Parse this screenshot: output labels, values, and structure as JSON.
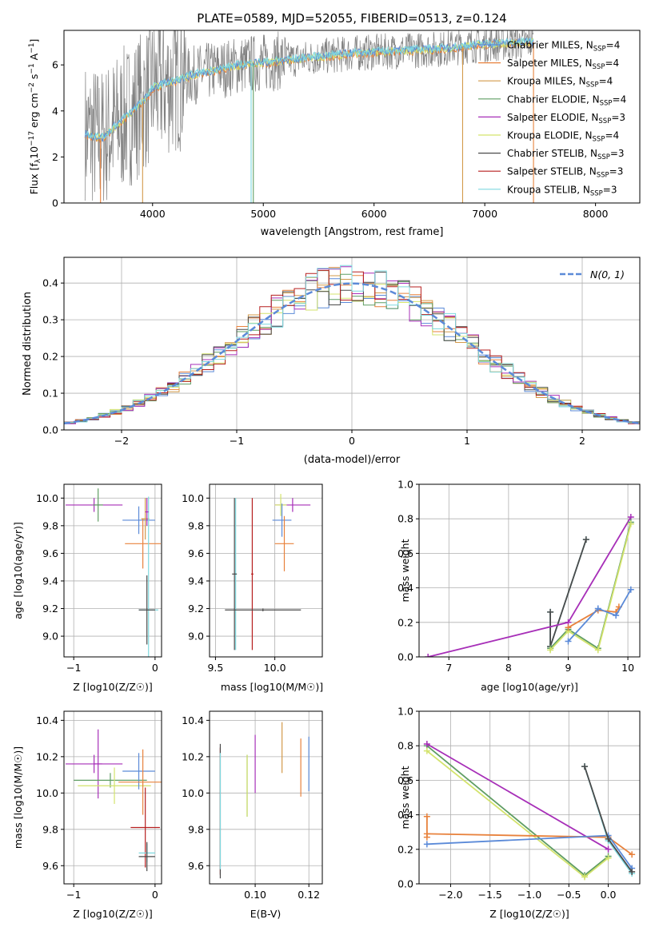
{
  "figure": {
    "title": "PLATE=0589, MJD=52055, FIBERID=0513, z=0.124"
  },
  "colors": {
    "chabrier_miles": "#5b8ad8",
    "salpeter_miles": "#e8823d",
    "kroupa_miles": "#d39a4a",
    "chabrier_elodie": "#5f9d63",
    "salpeter_elodie": "#a72fb8",
    "kroupa_elodie": "#d3e36c",
    "chabrier_stelib": "#4a4a4a",
    "salpeter_stelib": "#b61f1f",
    "kroupa_stelib": "#7fd9df",
    "gaussian": "#5b8ad8",
    "grid": "#b0b0b0"
  },
  "chart_data": [
    {
      "id": "spectrum",
      "type": "line",
      "xlabel": "wavelength [Angstrom, rest frame]",
      "ylabel_parts": [
        "Flux [f",
        "λ",
        "10",
        "−17",
        " erg cm",
        "−2",
        " s",
        "−1",
        " A",
        "−1",
        "]"
      ],
      "xlim": [
        3200,
        8400
      ],
      "ylim": [
        0,
        7.5
      ],
      "xticks": [
        4000,
        5000,
        6000,
        7000,
        8000
      ],
      "yticks": [
        0,
        2,
        4,
        6
      ],
      "grid": false,
      "legend_position": "top-right",
      "legend": [
        {
          "label": "Chabrier MILES, N",
          "sub": "SSP",
          "suffix": "=4",
          "color": "chabrier_miles"
        },
        {
          "label": "Salpeter MILES, N",
          "sub": "SSP",
          "suffix": "=4",
          "color": "salpeter_miles"
        },
        {
          "label": "Kroupa MILES, N",
          "sub": "SSP",
          "suffix": "=4",
          "color": "kroupa_miles"
        },
        {
          "label": "Chabrier ELODIE, N",
          "sub": "SSP",
          "suffix": "=4",
          "color": "chabrier_elodie"
        },
        {
          "label": "Salpeter ELODIE, N",
          "sub": "SSP",
          "suffix": "=3",
          "color": "salpeter_elodie"
        },
        {
          "label": "Kroupa ELODIE, N",
          "sub": "SSP",
          "suffix": "=4",
          "color": "kroupa_elodie"
        },
        {
          "label": "Chabrier STELIB, N",
          "sub": "SSP",
          "suffix": "=3",
          "color": "chabrier_stelib"
        },
        {
          "label": "Salpeter STELIB, N",
          "sub": "SSP",
          "suffix": "=3",
          "color": "salpeter_stelib"
        },
        {
          "label": "Kroupa STELIB, N",
          "sub": "SSP",
          "suffix": "=3",
          "color": "kroupa_stelib"
        }
      ],
      "continuum": [
        [
          3400,
          3.0
        ],
        [
          3550,
          2.8
        ],
        [
          3650,
          3.3
        ],
        [
          3800,
          3.9
        ],
        [
          3950,
          4.6
        ],
        [
          4000,
          5.0
        ],
        [
          4200,
          5.3
        ],
        [
          4400,
          5.6
        ],
        [
          4600,
          5.8
        ],
        [
          4800,
          6.0
        ],
        [
          5000,
          6.1
        ],
        [
          5200,
          6.2
        ],
        [
          5400,
          6.3
        ],
        [
          5600,
          6.4
        ],
        [
          5800,
          6.5
        ],
        [
          6000,
          6.55
        ],
        [
          6200,
          6.6
        ],
        [
          6400,
          6.65
        ],
        [
          6600,
          6.7
        ],
        [
          6800,
          6.8
        ],
        [
          7000,
          6.9
        ],
        [
          7200,
          6.95
        ],
        [
          7400,
          7.0
        ]
      ]
    },
    {
      "id": "residuals",
      "type": "histogram",
      "xlabel": "(data-model)/error",
      "ylabel": "Normed distribution",
      "xlim": [
        -2.5,
        2.5
      ],
      "ylim": [
        0,
        0.47
      ],
      "xticks": [
        -2,
        -1,
        0,
        1,
        2
      ],
      "xtick_labels": [
        "−2",
        "−1",
        "0",
        "1",
        "2"
      ],
      "yticks": [
        0.0,
        0.1,
        0.2,
        0.3,
        0.4
      ],
      "grid": true,
      "bin_width": 0.1,
      "legend_position": "top-right",
      "legend": [
        {
          "label": "N(0, 1)",
          "color": "gaussian",
          "style": "dashed"
        }
      ]
    },
    {
      "id": "age_vs_Z",
      "type": "errorbar",
      "xlabel": "Z [log10(Z/Z☉)]",
      "ylabel": "age [log10(age/yr)]",
      "xlim": [
        -1.12,
        0.08
      ],
      "ylim": [
        8.85,
        10.1
      ],
      "xticks": [
        -1,
        0
      ],
      "xtick_labels": [
        "−1",
        "0"
      ],
      "yticks": [
        9.0,
        9.2,
        9.4,
        9.6,
        9.8,
        10.0
      ],
      "grid": true,
      "points": [
        {
          "x": -0.75,
          "xerr": 0.35,
          "y": 9.95,
          "yerr": 0.05,
          "color": "salpeter_elodie"
        },
        {
          "x": -0.7,
          "xerr": 0.06,
          "y": 9.95,
          "yerr": 0.12,
          "color": "chabrier_elodie"
        },
        {
          "x": -0.2,
          "xerr": 0.2,
          "y": 9.84,
          "yerr": 0.1,
          "color": "chabrier_miles"
        },
        {
          "x": -0.15,
          "xerr": 0.22,
          "y": 9.67,
          "yerr": 0.18,
          "color": "salpeter_miles"
        },
        {
          "x": -0.12,
          "xerr": 0.05,
          "y": 9.85,
          "yerr": 0.15,
          "color": "kroupa_miles"
        },
        {
          "x": -0.08,
          "xerr": 0.12,
          "y": 9.19,
          "yerr": 0.82,
          "color": "kroupa_stelib"
        },
        {
          "x": -0.1,
          "xerr": 0.1,
          "y": 9.19,
          "yerr": 0.25,
          "color": "chabrier_stelib"
        },
        {
          "x": -0.1,
          "xerr": 0.02,
          "y": 9.9,
          "yerr": 0.1,
          "color": "salpeter_elodie"
        }
      ]
    },
    {
      "id": "age_vs_mass",
      "type": "errorbar",
      "xlabel": "mass [log10(M/M☉)]",
      "ylabel": "",
      "xlim": [
        9.45,
        10.4
      ],
      "ylim": [
        8.85,
        10.1
      ],
      "xticks": [
        9.5,
        10.0
      ],
      "xtick_labels": [
        "9.5",
        "10.0"
      ],
      "yticks": [
        9.0,
        9.2,
        9.4,
        9.6,
        9.8,
        10.0
      ],
      "grid": true,
      "points": [
        {
          "x": 10.15,
          "xerr": 0.15,
          "y": 9.95,
          "yerr": 0.05,
          "color": "salpeter_elodie"
        },
        {
          "x": 10.05,
          "xerr": 0.05,
          "y": 9.95,
          "yerr": 0.08,
          "color": "kroupa_elodie"
        },
        {
          "x": 10.06,
          "xerr": 0.08,
          "y": 9.84,
          "yerr": 0.12,
          "color": "chabrier_miles"
        },
        {
          "x": 10.08,
          "xerr": 0.08,
          "y": 9.67,
          "yerr": 0.2,
          "color": "salpeter_miles"
        },
        {
          "x": 9.67,
          "xerr": 0.01,
          "y": 9.45,
          "yerr": 0.55,
          "color": "kroupa_stelib"
        },
        {
          "x": 9.66,
          "xerr": 0.02,
          "y": 9.45,
          "yerr": 0.55,
          "color": "chabrier_stelib"
        },
        {
          "x": 9.81,
          "xerr": 0.01,
          "y": 9.45,
          "yerr": 0.55,
          "color": "salpeter_stelib"
        },
        {
          "x": 9.9,
          "xerr": 0.32,
          "y": 9.19,
          "yerr": 0.01,
          "color": "chabrier_stelib"
        }
      ]
    },
    {
      "id": "weight_vs_age",
      "type": "line",
      "xlabel": "age [log10(age/yr)]",
      "ylabel": "mass weight",
      "xlim": [
        6.5,
        10.2
      ],
      "ylim": [
        0,
        1.0
      ],
      "xticks": [
        7,
        8,
        9,
        10
      ],
      "yticks": [
        0.0,
        0.2,
        0.4,
        0.6,
        0.8,
        1.0
      ],
      "grid": true,
      "series": [
        {
          "color": "kroupa_stelib",
          "points": [
            [
              8.7,
              0.26
            ],
            [
              8.7,
              0.06
            ],
            [
              9.3,
              0.68
            ]
          ]
        },
        {
          "color": "chabrier_stelib",
          "points": [
            [
              8.7,
              0.26
            ],
            [
              8.7,
              0.06
            ],
            [
              9.3,
              0.68
            ]
          ]
        },
        {
          "color": "salpeter_elodie",
          "points": [
            [
              6.65,
              0.0
            ],
            [
              9.0,
              0.2
            ],
            [
              10.05,
              0.81
            ]
          ]
        },
        {
          "color": "chabrier_elodie",
          "points": [
            [
              8.7,
              0.05
            ],
            [
              9.0,
              0.16
            ],
            [
              9.5,
              0.05
            ],
            [
              10.05,
              0.78
            ]
          ]
        },
        {
          "color": "kroupa_elodie",
          "points": [
            [
              8.7,
              0.04
            ],
            [
              9.0,
              0.15
            ],
            [
              9.5,
              0.04
            ],
            [
              10.05,
              0.77
            ]
          ]
        },
        {
          "color": "salpeter_miles",
          "points": [
            [
              9.0,
              0.17
            ],
            [
              9.5,
              0.27
            ],
            [
              9.8,
              0.26
            ],
            [
              9.85,
              0.29
            ]
          ]
        },
        {
          "color": "chabrier_miles",
          "points": [
            [
              9.0,
              0.09
            ],
            [
              9.5,
              0.28
            ],
            [
              9.8,
              0.24
            ],
            [
              10.05,
              0.39
            ]
          ]
        }
      ]
    },
    {
      "id": "mass_vs_Z",
      "type": "errorbar",
      "xlabel": "Z [log10(Z/Z☉)]",
      "ylabel": "mass [log10(M/M☉)]",
      "xlim": [
        -1.12,
        0.08
      ],
      "ylim": [
        9.5,
        10.45
      ],
      "xticks": [
        -1,
        0
      ],
      "xtick_labels": [
        "−1",
        "0"
      ],
      "yticks": [
        9.6,
        9.8,
        10.0,
        10.2,
        10.4
      ],
      "grid": true,
      "points": [
        {
          "x": -0.75,
          "xerr": 0.35,
          "y": 10.16,
          "yerr": 0.05,
          "color": "salpeter_elodie"
        },
        {
          "x": -0.7,
          "xerr": 0.05,
          "y": 10.16,
          "yerr": 0.19,
          "color": "salpeter_elodie"
        },
        {
          "x": -0.55,
          "xerr": 0.45,
          "y": 10.07,
          "yerr": 0.04,
          "color": "chabrier_elodie"
        },
        {
          "x": -0.5,
          "xerr": 0.45,
          "y": 10.04,
          "yerr": 0.1,
          "color": "kroupa_elodie"
        },
        {
          "x": -0.2,
          "xerr": 0.2,
          "y": 10.12,
          "yerr": 0.1,
          "color": "chabrier_miles"
        },
        {
          "x": -0.15,
          "xerr": 0.3,
          "y": 10.06,
          "yerr": 0.18,
          "color": "salpeter_miles"
        },
        {
          "x": -0.12,
          "xerr": 0.18,
          "y": 9.81,
          "yerr": 0.22,
          "color": "salpeter_stelib"
        },
        {
          "x": -0.1,
          "xerr": 0.1,
          "y": 9.67,
          "yerr": 0.05,
          "color": "kroupa_stelib"
        },
        {
          "x": -0.1,
          "xerr": 0.1,
          "y": 9.65,
          "yerr": 0.08,
          "color": "chabrier_stelib"
        }
      ]
    },
    {
      "id": "mass_vs_ebv",
      "type": "errorbar",
      "xlabel": "E(B-V)",
      "ylabel": "",
      "xlim": [
        0.083,
        0.125
      ],
      "ylim": [
        9.5,
        10.45
      ],
      "xticks": [
        0.1,
        0.12
      ],
      "xtick_labels": [
        "0.10",
        "0.12"
      ],
      "yticks": [
        9.6,
        9.8,
        10.0,
        10.2,
        10.4
      ],
      "grid": true,
      "points": [
        {
          "x": 0.087,
          "xerr": 0.0,
          "y": 9.9,
          "yerr": 0.35,
          "color": "salpeter_stelib"
        },
        {
          "x": 0.087,
          "xerr": 0.0,
          "y": 9.9,
          "yerr": 0.37,
          "color": "chabrier_stelib"
        },
        {
          "x": 0.087,
          "xerr": 0.0,
          "y": 9.9,
          "yerr": 0.32,
          "color": "kroupa_stelib"
        },
        {
          "x": 0.097,
          "xerr": 0.0,
          "y": 10.04,
          "yerr": 0.17,
          "color": "chabrier_elodie"
        },
        {
          "x": 0.097,
          "xerr": 0.0,
          "y": 10.04,
          "yerr": 0.17,
          "color": "kroupa_elodie"
        },
        {
          "x": 0.1,
          "xerr": 0.0,
          "y": 10.16,
          "yerr": 0.16,
          "color": "salpeter_elodie"
        },
        {
          "x": 0.11,
          "xerr": 0.0,
          "y": 10.25,
          "yerr": 0.14,
          "color": "kroupa_miles"
        },
        {
          "x": 0.117,
          "xerr": 0.0,
          "y": 10.14,
          "yerr": 0.16,
          "color": "salpeter_miles"
        },
        {
          "x": 0.12,
          "xerr": 0.0,
          "y": 10.16,
          "yerr": 0.15,
          "color": "chabrier_miles"
        }
      ]
    },
    {
      "id": "weight_vs_Z",
      "type": "line",
      "xlabel": "Z [log10(Z/Z☉)]",
      "ylabel": "mass weight",
      "xlim": [
        -2.4,
        0.4
      ],
      "ylim": [
        0,
        1.0
      ],
      "xticks": [
        -2.0,
        -1.5,
        -1.0,
        -0.5,
        0.0
      ],
      "xtick_labels": [
        "−2.0",
        "−1.5",
        "−1.0",
        "−0.5",
        "0.0"
      ],
      "yticks": [
        0.0,
        0.2,
        0.4,
        0.6,
        0.8,
        1.0
      ],
      "grid": true,
      "series": [
        {
          "color": "chabrier_elodie",
          "points": [
            [
              -2.3,
              0.8
            ],
            [
              -0.3,
              0.05
            ],
            [
              0.0,
              0.16
            ]
          ]
        },
        {
          "color": "kroupa_elodie",
          "points": [
            [
              -2.3,
              0.77
            ],
            [
              -0.3,
              0.04
            ],
            [
              0.0,
              0.15
            ]
          ]
        },
        {
          "color": "salpeter_elodie",
          "points": [
            [
              -2.3,
              0.81
            ],
            [
              0.0,
              0.2
            ]
          ]
        },
        {
          "color": "salpeter_miles",
          "points": [
            [
              -2.3,
              0.29
            ],
            [
              0.0,
              0.27
            ],
            [
              0.3,
              0.17
            ]
          ]
        },
        {
          "color": "chabrier_miles",
          "points": [
            [
              -2.3,
              0.23
            ],
            [
              0.0,
              0.28
            ],
            [
              0.3,
              0.09
            ]
          ]
        },
        {
          "color": "kroupa_stelib",
          "points": [
            [
              -0.3,
              0.68
            ],
            [
              0.0,
              0.25
            ],
            [
              0.3,
              0.06
            ]
          ]
        },
        {
          "color": "chabrier_stelib",
          "points": [
            [
              -0.3,
              0.68
            ],
            [
              0.0,
              0.26
            ],
            [
              0.3,
              0.07
            ]
          ]
        },
        {
          "color": "salpeter_miles",
          "points": [
            [
              -2.3,
              0.27
            ],
            [
              -2.3,
              0.39
            ]
          ]
        }
      ]
    }
  ]
}
